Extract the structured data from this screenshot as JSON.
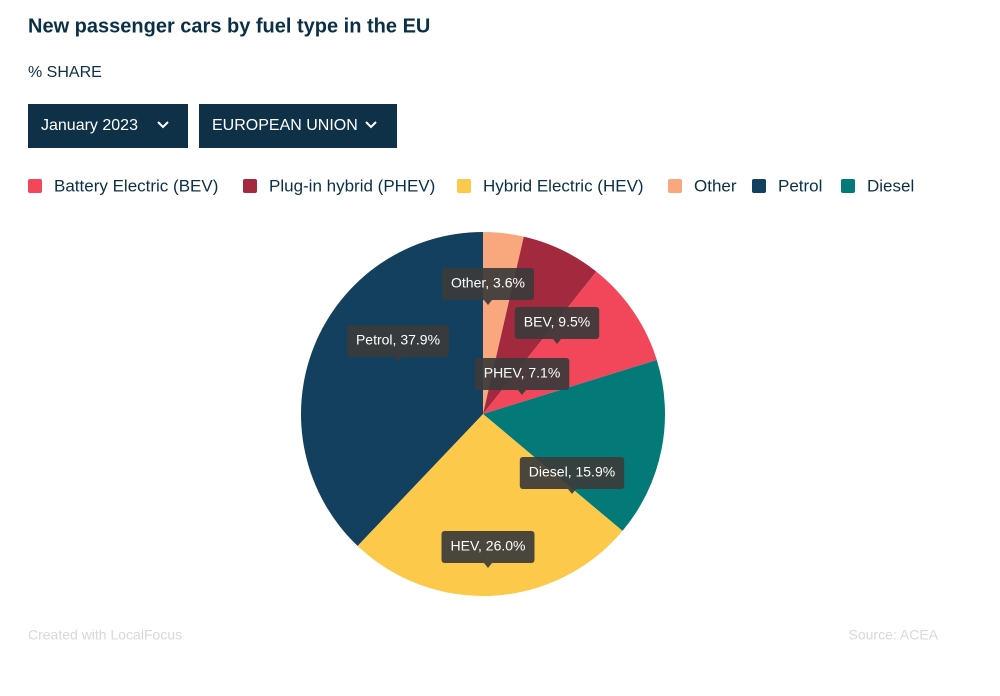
{
  "chart_data": {
    "type": "pie",
    "title": "New passenger cars by fuel type in the EU",
    "subtitle": "% SHARE",
    "legend": [
      {
        "name": "Battery Electric (BEV)",
        "color": "#f2475a"
      },
      {
        "name": "Plug-in hybrid (PHEV)",
        "color": "#a3293f"
      },
      {
        "name": "Hybrid Electric (HEV)",
        "color": "#fdc94a"
      },
      {
        "name": "Other",
        "color": "#f9a77c"
      },
      {
        "name": "Petrol",
        "color": "#12405e"
      },
      {
        "name": "Diesel",
        "color": "#047a78"
      }
    ],
    "values": [
      3.6,
      7.1,
      9.5,
      15.9,
      26.0,
      37.9
    ],
    "value_labels": [
      "Other, 3.6%",
      "PHEV, 7.1%",
      "BEV, 9.5%",
      "Diesel, 15.9%",
      "HEV, 26.0%",
      "Petrol, 37.9%"
    ],
    "colors": [
      "#f9a77c",
      "#a3293f",
      "#f2475a",
      "#047a78",
      "#fdc94a",
      "#12405e"
    ]
  },
  "controls": [
    "January 2023",
    "EUROPEAN UNION"
  ],
  "footer": {
    "credit": "Created with LocalFocus",
    "source": "Source:  ACEA"
  }
}
